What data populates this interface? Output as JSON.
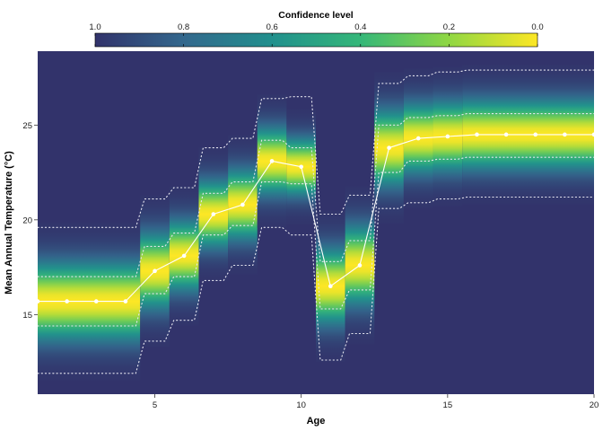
{
  "chart_data": {
    "type": "heatmap",
    "title": "",
    "xlabel": "Age",
    "ylabel": "Mean Annual Temperature (°C)",
    "xlim": [
      1,
      20
    ],
    "ylim": [
      10.8,
      28.9
    ],
    "x_ticks": [
      5,
      10,
      15,
      20
    ],
    "y_ticks": [
      15,
      20,
      25
    ],
    "legend": {
      "title": "Confidence level",
      "position": "top",
      "ticks": [
        1.0,
        0.8,
        0.6,
        0.4,
        0.2,
        0.0
      ],
      "tick_labels": [
        "1.0",
        "0.8",
        "0.6",
        "0.4",
        "0.2",
        "0.0"
      ],
      "colormap": "viridis",
      "colors": [
        "#32336b",
        "#33688d",
        "#21908d",
        "#35b779",
        "#90d743",
        "#fde725"
      ]
    },
    "series": [
      {
        "marker": "white-dots",
        "x": [
          1,
          2,
          3,
          4,
          5,
          6,
          7,
          8,
          9,
          10,
          11,
          12,
          13,
          14,
          15,
          16,
          17,
          18,
          19,
          20
        ],
        "y": [
          15.7,
          15.7,
          15.7,
          15.7,
          17.3,
          18.1,
          20.3,
          20.8,
          23.1,
          22.8,
          16.5,
          17.6,
          23.8,
          24.3,
          24.4,
          24.5,
          24.5,
          24.5,
          24.5,
          24.5
        ]
      }
    ],
    "band_inner": {
      "lower": [
        14.4,
        14.4,
        14.4,
        14.4,
        16.1,
        17.0,
        19.2,
        19.7,
        22.0,
        21.9,
        15.3,
        16.3,
        22.5,
        23.1,
        23.2,
        23.3,
        23.3,
        23.3,
        23.3,
        23.3
      ],
      "upper": [
        17.0,
        17.0,
        17.0,
        17.0,
        18.6,
        19.3,
        21.4,
        22.0,
        24.2,
        23.8,
        17.8,
        18.9,
        25.0,
        25.4,
        25.5,
        25.6,
        25.6,
        25.6,
        25.6,
        25.6
      ]
    },
    "band_outer": {
      "lower": [
        11.9,
        11.9,
        11.9,
        11.9,
        13.6,
        14.7,
        16.8,
        17.6,
        19.6,
        19.2,
        12.6,
        14.0,
        20.6,
        20.9,
        21.1,
        21.2,
        21.2,
        21.2,
        21.2,
        21.2
      ],
      "upper": [
        19.6,
        19.6,
        19.6,
        19.6,
        21.1,
        21.7,
        23.8,
        24.3,
        26.4,
        26.5,
        20.3,
        21.3,
        27.2,
        27.6,
        27.8,
        27.9,
        27.9,
        27.9,
        27.9,
        27.9
      ]
    },
    "grid": false,
    "colors": {
      "line": "#ffffff",
      "point": "#ffffff",
      "band": "#e6e6f0",
      "background": "#32336b",
      "axis": "#333333"
    }
  }
}
